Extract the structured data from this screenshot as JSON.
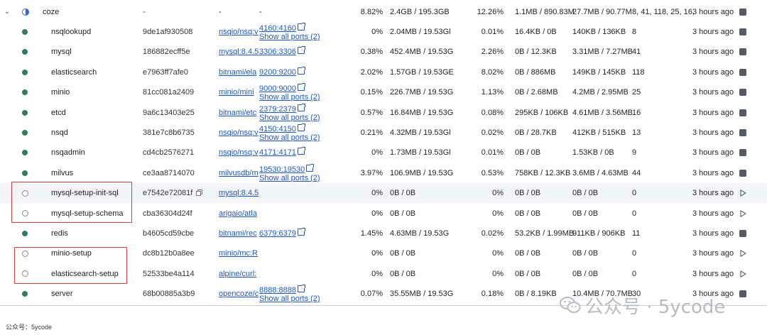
{
  "group": {
    "name": "coze",
    "container_id": "-",
    "image": "-",
    "ports": "-",
    "cpu": "8.82%",
    "memory": "2.4GB / 195.3GB",
    "cpu2": "12.26%",
    "net_io": "1.1MB / 890.83M",
    "block_io": "27.7MB / 90.77M",
    "pids": "8, 41, 118, 25, 16,",
    "last_started": "3 hours ago"
  },
  "rows": [
    {
      "name": "nsqlookupd",
      "container_id": "9de1af930508",
      "image": "nsqio/nsq:v",
      "ports": [
        "4160:4160"
      ],
      "show_all": "Show all ports (2)",
      "cpu": "0%",
      "memory": "2.04MB / 19.53Gl",
      "cpu2": "0.01%",
      "net_io": "16.4KB / 0B",
      "block_io": "140KB / 136KB",
      "pids": "8",
      "last_started": "3 hours ago",
      "status": "running"
    },
    {
      "name": "mysql",
      "container_id": "186882ecff5e",
      "image": "mysql:8.4.5",
      "ports": [
        "3306:3306"
      ],
      "show_all": "",
      "cpu": "0.38%",
      "memory": "452.4MB / 19.53G",
      "cpu2": "2.26%",
      "net_io": "0B / 12.3KB",
      "block_io": "3.31MB / 7.27MB",
      "pids": "41",
      "last_started": "3 hours ago",
      "status": "running"
    },
    {
      "name": "elasticsearch",
      "container_id": "e7963ff7afe0",
      "image": "bitnami/ela",
      "ports": [
        "9200:9200"
      ],
      "show_all": "",
      "cpu": "2.02%",
      "memory": "1.57GB / 19.53GE",
      "cpu2": "8.02%",
      "net_io": "0B / 886MB",
      "block_io": "149KB / 145KB",
      "pids": "118",
      "last_started": "3 hours ago",
      "status": "running"
    },
    {
      "name": "minio",
      "container_id": "81cc081a2409",
      "image": "minio/mini",
      "ports": [
        "9000:9000"
      ],
      "show_all": "Show all ports (2)",
      "cpu": "0.15%",
      "memory": "226.7MB / 19.53G",
      "cpu2": "1.13%",
      "net_io": "0B / 2.68MB",
      "block_io": "4.2MB / 2.95MB",
      "pids": "25",
      "last_started": "3 hours ago",
      "status": "running"
    },
    {
      "name": "etcd",
      "container_id": "9a6c13403e25",
      "image": "bitnami/etc",
      "ports": [
        "2379:2379"
      ],
      "show_all": "Show all ports (2)",
      "cpu": "0.57%",
      "memory": "16.84MB / 19.53G",
      "cpu2": "0.08%",
      "net_io": "295KB / 106KB",
      "block_io": "4.61MB / 3.56MB",
      "pids": "16",
      "last_started": "3 hours ago",
      "status": "running"
    },
    {
      "name": "nsqd",
      "container_id": "381e7c8b6735",
      "image": "nsqio/nsq:v",
      "ports": [
        "4150:4150"
      ],
      "show_all": "Show all ports (2)",
      "cpu": "0.21%",
      "memory": "4.32MB / 19.53Gl",
      "cpu2": "0.02%",
      "net_io": "0B / 28.7KB",
      "block_io": "412KB / 515KB",
      "pids": "13",
      "last_started": "3 hours ago",
      "status": "running"
    },
    {
      "name": "nsqadmin",
      "container_id": "cd4cb2576271",
      "image": "nsqio/nsq:v",
      "ports": [
        "4171:4171"
      ],
      "show_all": "",
      "cpu": "0%",
      "memory": "1.73MB / 19.53Gl",
      "cpu2": "0.01%",
      "net_io": "0B / 0B",
      "block_io": "1.53KB / 0B",
      "pids": "9",
      "last_started": "3 hours ago",
      "status": "running"
    },
    {
      "name": "milvus",
      "container_id": "ce3aa8714070",
      "image": "milvusdb/m",
      "ports": [
        "19530:19530"
      ],
      "show_all": "Show all ports (2)",
      "cpu": "3.97%",
      "memory": "106.9MB / 19.53G",
      "cpu2": "0.53%",
      "net_io": "758KB / 12.3KB",
      "block_io": "3.6MB / 4.63MB",
      "pids": "44",
      "last_started": "3 hours ago",
      "status": "running"
    },
    {
      "name": "mysql-setup-init-sql",
      "container_id": "e7542e72081f",
      "image": "mysql:8.4.5",
      "ports": [],
      "show_all": "",
      "cpu": "0%",
      "memory": "0B / 0B",
      "cpu2": "0%",
      "net_io": "0B / 0B",
      "block_io": "0B / 0B",
      "pids": "0",
      "last_started": "3 hours ago",
      "status": "stopped"
    },
    {
      "name": "mysql-setup-schema",
      "container_id": "cba36304d24f",
      "image": "arigaio/atla",
      "ports": [],
      "show_all": "",
      "cpu": "0%",
      "memory": "0B / 0B",
      "cpu2": "0%",
      "net_io": "0B / 0B",
      "block_io": "0B / 0B",
      "pids": "0",
      "last_started": "3 hours ago",
      "status": "stopped"
    },
    {
      "name": "redis",
      "container_id": "b4605cd59cbe",
      "image": "bitnami/rec",
      "ports": [
        "6379:6379"
      ],
      "show_all": "",
      "cpu": "1.45%",
      "memory": "4.63MB / 19.53G",
      "cpu2": "0.02%",
      "net_io": "53.2KB / 1.99MB",
      "block_io": "911KB / 906KB",
      "pids": "11",
      "last_started": "3 hours ago",
      "status": "running"
    },
    {
      "name": "minio-setup",
      "container_id": "dc8b12b0a8ee",
      "image": "minio/mc:R",
      "ports": [],
      "show_all": "",
      "cpu": "0%",
      "memory": "0B / 0B",
      "cpu2": "0%",
      "net_io": "0B / 0B",
      "block_io": "0B / 0B",
      "pids": "0",
      "last_started": "3 hours ago",
      "status": "stopped"
    },
    {
      "name": "elasticsearch-setup",
      "container_id": "52533be4a114",
      "image": "alpine/curl:",
      "ports": [],
      "show_all": "",
      "cpu": "0%",
      "memory": "0B / 0B",
      "cpu2": "0%",
      "net_io": "0B / 0B",
      "block_io": "0B / 0B",
      "pids": "0",
      "last_started": "3 hours ago",
      "status": "stopped"
    },
    {
      "name": "server",
      "container_id": "68b00885a3b9",
      "image": "opencoze/c",
      "ports": [
        "8888:8888"
      ],
      "show_all": "Show all ports (2)",
      "cpu": "0.07%",
      "memory": "35.55MB / 19.53G",
      "cpu2": "0.18%",
      "net_io": "0B / 8.19KB",
      "block_io": "10.4MB / 70.7MB",
      "pids": "30",
      "last_started": "3 hours ago",
      "status": "running"
    }
  ],
  "watermark": "公众号 · 5ycode",
  "caption": "公众号：5ycode",
  "colors": {
    "running": "#2e7d5b",
    "link": "#1a57d6",
    "highlight_box": "#e03b3b"
  }
}
